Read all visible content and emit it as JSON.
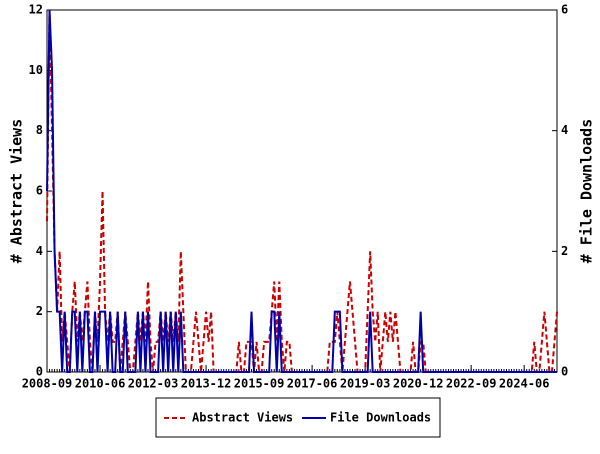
{
  "chart_data": {
    "type": "line",
    "x": [
      "2008-09",
      "2008-10",
      "2008-11",
      "2008-12",
      "2009-01",
      "2009-02",
      "2009-03",
      "2009-04",
      "2009-05",
      "2009-06",
      "2009-07",
      "2009-08",
      "2009-09",
      "2009-10",
      "2009-11",
      "2009-12",
      "2010-01",
      "2010-02",
      "2010-03",
      "2010-04",
      "2010-05",
      "2010-06",
      "2010-07",
      "2010-08",
      "2010-09",
      "2010-10",
      "2010-11",
      "2010-12",
      "2011-01",
      "2011-02",
      "2011-03",
      "2011-04",
      "2011-05",
      "2011-06",
      "2011-07",
      "2011-08",
      "2011-09",
      "2011-10",
      "2011-11",
      "2011-12",
      "2012-01",
      "2012-02",
      "2012-03",
      "2012-04",
      "2012-05",
      "2012-06",
      "2012-07",
      "2012-08",
      "2012-09",
      "2012-10",
      "2012-11",
      "2012-12",
      "2013-01",
      "2013-02",
      "2013-03",
      "2013-04",
      "2013-05",
      "2013-06",
      "2013-07",
      "2013-08",
      "2013-09",
      "2013-10",
      "2013-11",
      "2013-12",
      "2014-01",
      "2014-02",
      "2014-03",
      "2014-04",
      "2014-05",
      "2014-06",
      "2014-07",
      "2014-08",
      "2014-09",
      "2014-10",
      "2014-11",
      "2014-12",
      "2015-01",
      "2015-02",
      "2015-03",
      "2015-04",
      "2015-05",
      "2015-06",
      "2015-07",
      "2015-08",
      "2015-09",
      "2015-10",
      "2015-11",
      "2015-12",
      "2016-01",
      "2016-02",
      "2016-03",
      "2016-04",
      "2016-05",
      "2016-06",
      "2016-07",
      "2016-08",
      "2016-09",
      "2016-10",
      "2016-11",
      "2016-12",
      "2017-01",
      "2017-02",
      "2017-03",
      "2017-04",
      "2017-05",
      "2017-06",
      "2017-07",
      "2017-08",
      "2017-09",
      "2017-10",
      "2017-11",
      "2017-12",
      "2018-01",
      "2018-02",
      "2018-03",
      "2018-04",
      "2018-05",
      "2018-06",
      "2018-07",
      "2018-08",
      "2018-09",
      "2018-10",
      "2018-11",
      "2018-12",
      "2019-01",
      "2019-02",
      "2019-03",
      "2019-04",
      "2019-05",
      "2019-06",
      "2019-07",
      "2019-08",
      "2019-09",
      "2019-10",
      "2019-11",
      "2019-12",
      "2020-01",
      "2020-02",
      "2020-03",
      "2020-04",
      "2020-05",
      "2020-06",
      "2020-07",
      "2020-08",
      "2020-09",
      "2020-10",
      "2020-11",
      "2020-12",
      "2021-01",
      "2021-02",
      "2021-03",
      "2021-04",
      "2021-05",
      "2021-06",
      "2021-07",
      "2021-08",
      "2021-09",
      "2021-10",
      "2021-11",
      "2021-12",
      "2022-01",
      "2022-02",
      "2022-03",
      "2022-04",
      "2022-05",
      "2022-06",
      "2022-07",
      "2022-08",
      "2022-09",
      "2022-10",
      "2022-11",
      "2022-12",
      "2023-01",
      "2023-02",
      "2023-03",
      "2023-04",
      "2023-05",
      "2023-06",
      "2023-07",
      "2023-08",
      "2023-09",
      "2023-10",
      "2023-11",
      "2023-12",
      "2024-01",
      "2024-02",
      "2024-03",
      "2024-04",
      "2024-05",
      "2024-06",
      "2024-07",
      "2024-08",
      "2024-09",
      "2024-10",
      "2024-11",
      "2024-12",
      "2025-01",
      "2025-02",
      "2025-03",
      "2025-04",
      "2025-05",
      "2025-06",
      "2025-07"
    ],
    "xticks": [
      "2008-09",
      "2010-06",
      "2012-03",
      "2013-12",
      "2015-09",
      "2017-06",
      "2019-03",
      "2020-12",
      "2022-09",
      "2024-06"
    ],
    "ylabel": "# Abstract Views",
    "y2label": "# File Downloads",
    "ylim": [
      0,
      12
    ],
    "yticks": [
      0,
      2,
      4,
      6,
      8,
      10,
      12
    ],
    "y2lim": [
      0,
      6
    ],
    "y2ticks": [
      0,
      2,
      4,
      6
    ],
    "series": [
      {
        "name": "Abstract Views",
        "color": "#cc0000",
        "dash": true,
        "values": [
          5,
          12,
          8,
          4,
          2,
          4,
          1,
          2,
          1,
          0,
          2,
          3,
          1,
          2,
          1,
          2,
          3,
          1,
          0,
          2,
          1,
          3,
          6,
          2,
          1,
          2,
          1,
          1,
          2,
          0,
          1,
          2,
          1,
          0,
          0,
          1,
          2,
          1,
          2,
          1,
          3,
          1,
          0,
          1,
          1,
          2,
          1,
          2,
          1,
          2,
          1,
          2,
          1,
          4,
          2,
          0,
          0,
          0,
          1,
          2,
          1,
          0,
          1,
          2,
          1,
          2,
          0,
          0,
          0,
          0,
          0,
          0,
          0,
          0,
          0,
          0,
          1,
          0,
          0,
          1,
          1,
          1,
          0,
          1,
          0,
          0,
          1,
          1,
          1,
          2,
          3,
          1,
          3,
          1,
          0,
          1,
          1,
          0,
          0,
          0,
          0,
          0,
          0,
          0,
          0,
          0,
          0,
          0,
          0,
          0,
          0,
          0,
          1,
          1,
          1,
          2,
          1,
          0,
          1,
          2,
          3,
          2,
          1,
          0,
          0,
          0,
          0,
          2,
          4,
          2,
          1,
          2,
          0,
          1,
          2,
          1,
          2,
          1,
          2,
          1,
          0,
          0,
          0,
          0,
          0,
          1,
          0,
          0,
          1,
          1,
          0,
          0,
          0,
          0,
          0,
          0,
          0,
          0,
          0,
          0,
          0,
          0,
          0,
          0,
          0,
          0,
          0,
          0,
          0,
          0,
          0,
          0,
          0,
          0,
          0,
          0,
          0,
          0,
          0,
          0,
          0,
          0,
          0,
          0,
          0,
          0,
          0,
          0,
          0,
          0,
          0,
          0,
          0,
          1,
          0,
          0,
          1,
          2,
          1,
          0,
          0,
          1,
          2
        ]
      },
      {
        "name": "File Downloads",
        "color": "#0000aa",
        "axis": "y2",
        "dash": false,
        "values": [
          3,
          6,
          5,
          2,
          1,
          1,
          0,
          1,
          0,
          0,
          1,
          1,
          0,
          1,
          0,
          1,
          1,
          0,
          0,
          1,
          0,
          1,
          1,
          1,
          0,
          1,
          0,
          0,
          1,
          0,
          0,
          1,
          0,
          0,
          0,
          0,
          1,
          0,
          1,
          0,
          1,
          0,
          0,
          0,
          0,
          1,
          0,
          1,
          0,
          1,
          0,
          1,
          0,
          1,
          0,
          0,
          0,
          0,
          0,
          0,
          0,
          0,
          0,
          0,
          0,
          0,
          0,
          0,
          0,
          0,
          0,
          0,
          0,
          0,
          0,
          0,
          0,
          0,
          0,
          0,
          0,
          1,
          0,
          0,
          0,
          0,
          0,
          0,
          0,
          1,
          1,
          0,
          1,
          0,
          0,
          0,
          0,
          0,
          0,
          0,
          0,
          0,
          0,
          0,
          0,
          0,
          0,
          0,
          0,
          0,
          0,
          0,
          0,
          0,
          1,
          1,
          1,
          0,
          0,
          0,
          0,
          0,
          0,
          0,
          0,
          0,
          0,
          0,
          1,
          0,
          0,
          0,
          0,
          0,
          0,
          0,
          0,
          0,
          0,
          0,
          0,
          0,
          0,
          0,
          0,
          0,
          0,
          0,
          1,
          0,
          0,
          0,
          0,
          0,
          0,
          0,
          0,
          0,
          0,
          0,
          0,
          0,
          0,
          0,
          0,
          0,
          0,
          0,
          0,
          0,
          0,
          0,
          0,
          0,
          0,
          0,
          0,
          0,
          0,
          0,
          0,
          0,
          0,
          0,
          0,
          0,
          0,
          0,
          0,
          0,
          0,
          0,
          0,
          0,
          0,
          0,
          0,
          0,
          0,
          0,
          0,
          0,
          0
        ]
      }
    ]
  }
}
